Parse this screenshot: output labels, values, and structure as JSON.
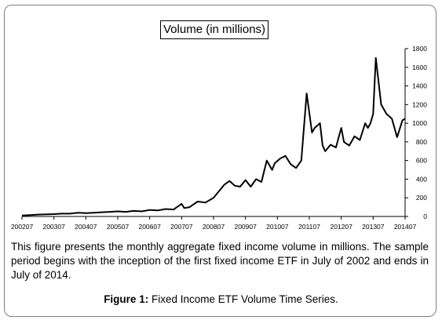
{
  "chart_data": {
    "type": "line",
    "title": "Volume (in millions)",
    "xlabel": "",
    "ylabel": "",
    "ylim": [
      0,
      1800
    ],
    "yticks": [
      0,
      200,
      400,
      600,
      800,
      1000,
      1200,
      1400,
      1600,
      1800
    ],
    "grid": false,
    "legend": "none",
    "line_color": "#000000",
    "x_ticks": [
      "200207",
      "200307",
      "200407",
      "200507",
      "200607",
      "200707",
      "200807",
      "200907",
      "201007",
      "201107",
      "201207",
      "201307",
      "201407"
    ],
    "series": [
      {
        "x": [
          "2002-07",
          "2002-10",
          "2003-01",
          "2003-07",
          "2003-10",
          "2004-01",
          "2004-04",
          "2004-07",
          "2004-10",
          "2005-01",
          "2005-04",
          "2005-07",
          "2005-10",
          "2006-01",
          "2006-04",
          "2006-07",
          "2006-10",
          "2007-01",
          "2007-04",
          "2007-07",
          "2007-08",
          "2007-10",
          "2008-01",
          "2008-04",
          "2008-07",
          "2008-09",
          "2008-11",
          "2009-01",
          "2009-03",
          "2009-05",
          "2009-07",
          "2009-09",
          "2009-11",
          "2010-01",
          "2010-03",
          "2010-05",
          "2010-06",
          "2010-08",
          "2010-10",
          "2010-12",
          "2011-02",
          "2011-04",
          "2011-06",
          "2011-08",
          "2011-09",
          "2011-11",
          "2011-12",
          "2012-01",
          "2012-03",
          "2012-05",
          "2012-07",
          "2012-08",
          "2012-10",
          "2012-12",
          "2013-02",
          "2013-04",
          "2013-05",
          "2013-06",
          "2013-07",
          "2013-08",
          "2013-10",
          "2013-12",
          "2014-02",
          "2014-04",
          "2014-06",
          "2014-07"
        ],
        "values": [
          10,
          15,
          20,
          25,
          30,
          30,
          40,
          35,
          40,
          45,
          50,
          55,
          50,
          60,
          55,
          70,
          65,
          80,
          75,
          135,
          90,
          100,
          160,
          150,
          200,
          270,
          340,
          380,
          330,
          320,
          390,
          320,
          400,
          370,
          600,
          500,
          570,
          620,
          650,
          560,
          520,
          600,
          1320,
          900,
          950,
          1000,
          760,
          700,
          770,
          740,
          950,
          800,
          760,
          860,
          820,
          1000,
          950,
          1000,
          1100,
          1700,
          1200,
          1100,
          1050,
          850,
          1030,
          1050
        ]
      }
    ]
  },
  "caption": "This figure presents the monthly aggregate fixed income volume in millions. The sample period begins with the inception of the first fixed income ETF in July of 2002 and ends in July of 2014.",
  "figure_label": "Figure 1:",
  "figure_title": "Fixed Income ETF Volume Time Series."
}
